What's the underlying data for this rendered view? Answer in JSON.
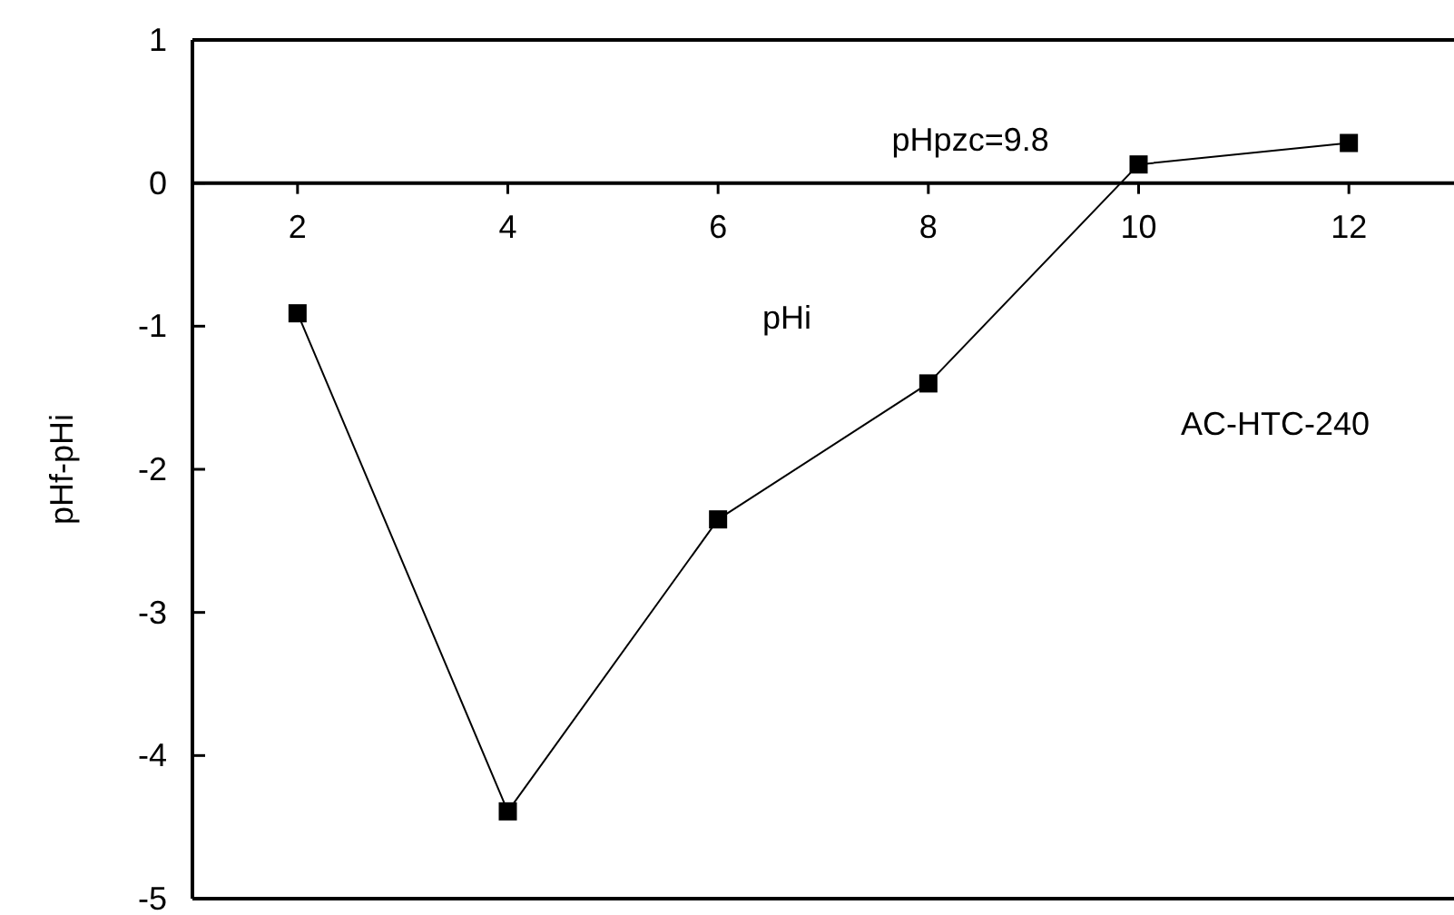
{
  "chart_data": {
    "type": "line",
    "xlabel": "pHi",
    "ylabel": "pHf-pHi",
    "x": [
      2,
      4,
      6,
      8,
      10,
      12
    ],
    "series": [
      {
        "color": "#000000",
        "values": [
          -0.91,
          -4.39,
          -2.35,
          -1.4,
          0.13,
          0.28
        ]
      }
    ],
    "xlim": [
      1,
      13
    ],
    "xticks": [
      2,
      4,
      6,
      8,
      10,
      12
    ],
    "ylim": [
      -5,
      1
    ],
    "yticks": [
      -5,
      -4,
      -3,
      -2,
      -1,
      0,
      1
    ],
    "marker": "square",
    "line_style": "solid",
    "grid": false,
    "legend": false,
    "annotations": [
      "pHpzc=9.8",
      "AC-HTC-240"
    ]
  }
}
